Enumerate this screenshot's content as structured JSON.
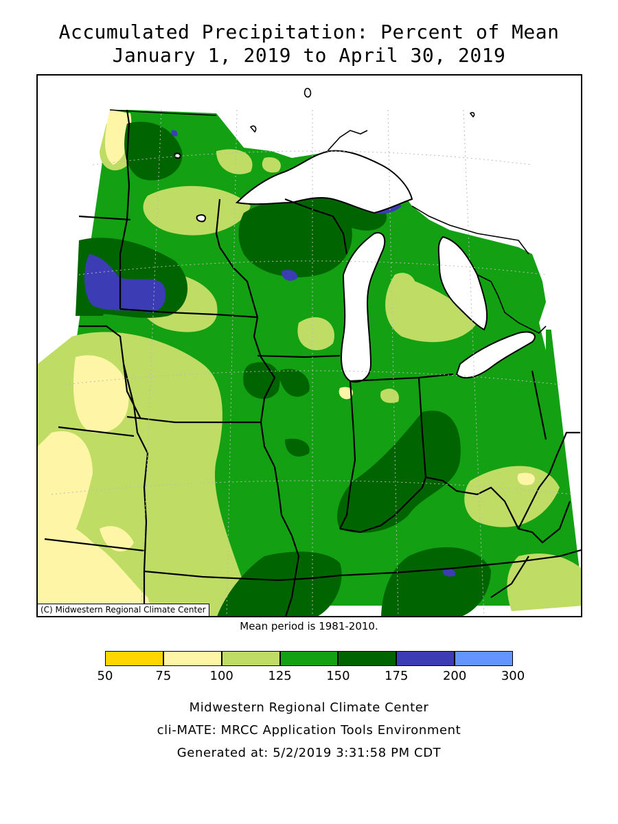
{
  "title": {
    "line1": "Accumulated Precipitation: Percent of Mean",
    "line2": "January 1, 2019 to April 30, 2019"
  },
  "map": {
    "copyright": "(C) Midwestern Regional Climate Center",
    "mean_note": "Mean period is 1981-2010.",
    "colors": {
      "50_75": "#ffd700",
      "75_100": "#fff5a6",
      "100_125": "#bfdc64",
      "125_150": "#13a013",
      "150_175": "#006400",
      "175_200": "#3c3cb4",
      "200_300": "#6495ff",
      "lakes": "#ffffff",
      "outside": "#ffffff"
    }
  },
  "legend": {
    "bins": [
      {
        "from": 50,
        "to": 75,
        "color": "#ffd700"
      },
      {
        "from": 75,
        "to": 100,
        "color": "#fff5a6"
      },
      {
        "from": 100,
        "to": 125,
        "color": "#bfdc64"
      },
      {
        "from": 125,
        "to": 150,
        "color": "#13a013"
      },
      {
        "from": 150,
        "to": 175,
        "color": "#006400"
      },
      {
        "from": 175,
        "to": 200,
        "color": "#3c3cb4"
      },
      {
        "from": 200,
        "to": 300,
        "color": "#6495ff"
      }
    ],
    "ticks": [
      "50",
      "75",
      "100",
      "125",
      "150",
      "175",
      "200",
      "300"
    ]
  },
  "footer": {
    "line1": "Midwestern Regional Climate Center",
    "line2": "cli-MATE: MRCC Application Tools Environment",
    "line3": "Generated at: 5/2/2019 3:31:58 PM CDT"
  }
}
